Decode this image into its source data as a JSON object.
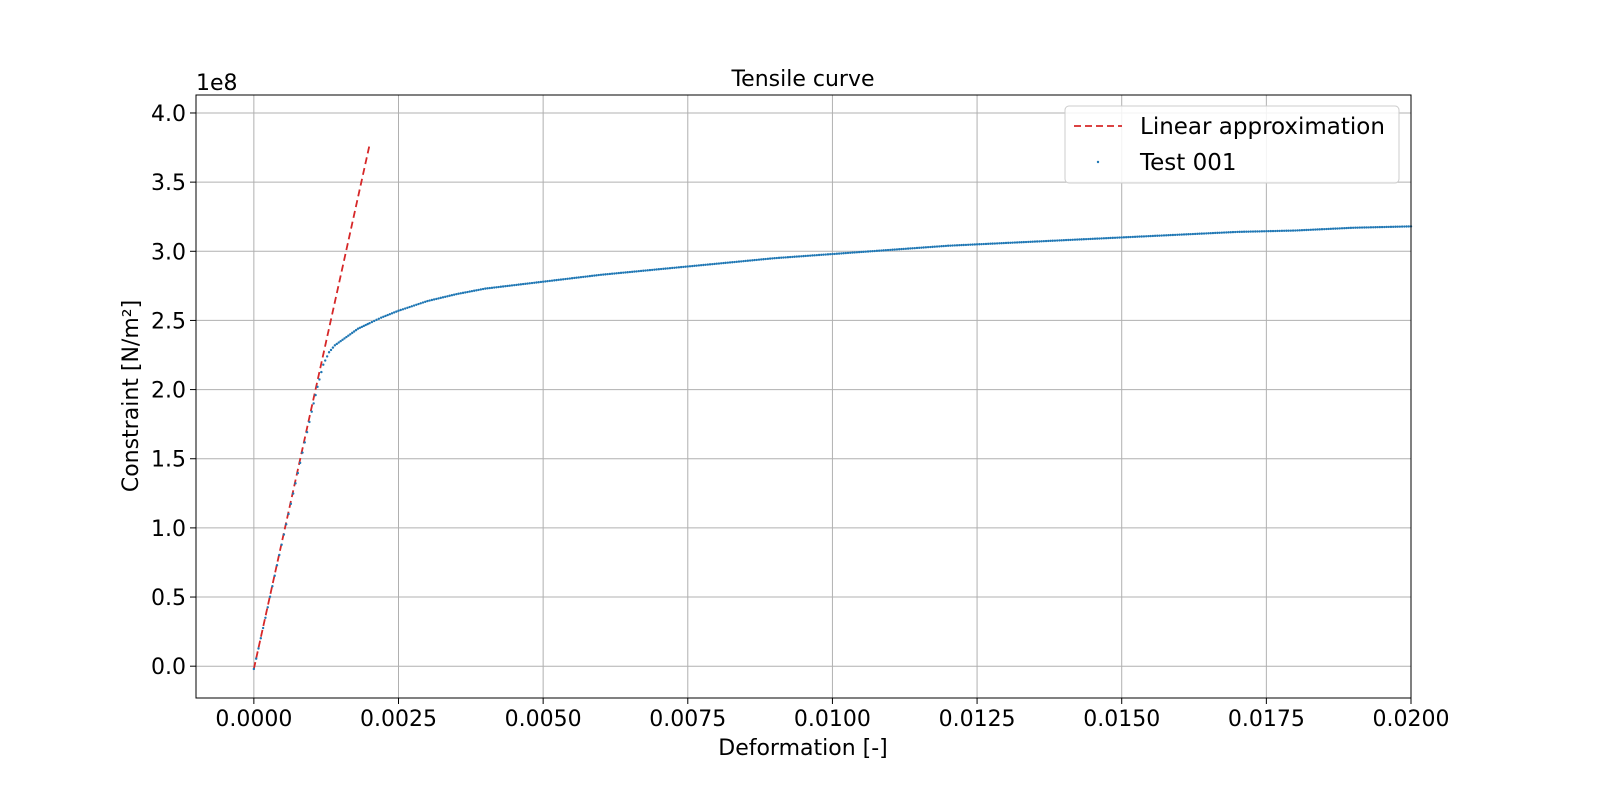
{
  "chart_data": {
    "type": "scatter",
    "title": "Tensile curve",
    "xlabel": "Deformation [-]",
    "ylabel": "Constraint [N/m²]",
    "y_offset_label": "1e8",
    "xlim": [
      -0.001,
      0.02
    ],
    "ylim": [
      -0.23,
      4.13
    ],
    "y_scale_factor": 100000000,
    "x_ticks": [
      0.0,
      0.0025,
      0.005,
      0.0075,
      0.01,
      0.0125,
      0.015,
      0.0175,
      0.02
    ],
    "x_tick_labels": [
      "0.0000",
      "0.0025",
      "0.0050",
      "0.0075",
      "0.0100",
      "0.0125",
      "0.0150",
      "0.0175",
      "0.0200"
    ],
    "y_ticks": [
      0.0,
      0.5,
      1.0,
      1.5,
      2.0,
      2.5,
      3.0,
      3.5,
      4.0
    ],
    "y_tick_labels": [
      "0.0",
      "0.5",
      "1.0",
      "1.5",
      "2.0",
      "2.5",
      "3.0",
      "3.5",
      "4.0"
    ],
    "grid": true,
    "legend_position": "top-right",
    "series": [
      {
        "name": "Linear approximation",
        "kind": "line",
        "style": "dashed",
        "color": "#d62728",
        "x": [
          0.0,
          0.002
        ],
        "y": [
          -0.02,
          3.77
        ]
      },
      {
        "name": "Test 001",
        "kind": "scatter",
        "color": "#1f77b4",
        "x": [
          0.0,
          0.0002,
          0.0004,
          0.0006,
          0.0008,
          0.001,
          0.0011,
          0.0012,
          0.0013,
          0.0014,
          0.0015,
          0.0016,
          0.0017,
          0.0018,
          0.0019,
          0.002,
          0.0022,
          0.0025,
          0.003,
          0.0035,
          0.004,
          0.005,
          0.006,
          0.007,
          0.008,
          0.009,
          0.01,
          0.011,
          0.012,
          0.013,
          0.014,
          0.015,
          0.016,
          0.017,
          0.018,
          0.019,
          0.02
        ],
        "y": [
          -0.02,
          0.35,
          0.73,
          1.1,
          1.47,
          1.84,
          2.02,
          2.18,
          2.27,
          2.32,
          2.35,
          2.38,
          2.41,
          2.44,
          2.46,
          2.48,
          2.52,
          2.57,
          2.64,
          2.69,
          2.73,
          2.78,
          2.83,
          2.87,
          2.91,
          2.95,
          2.98,
          3.01,
          3.04,
          3.06,
          3.08,
          3.1,
          3.12,
          3.14,
          3.15,
          3.17,
          3.18
        ]
      }
    ]
  }
}
